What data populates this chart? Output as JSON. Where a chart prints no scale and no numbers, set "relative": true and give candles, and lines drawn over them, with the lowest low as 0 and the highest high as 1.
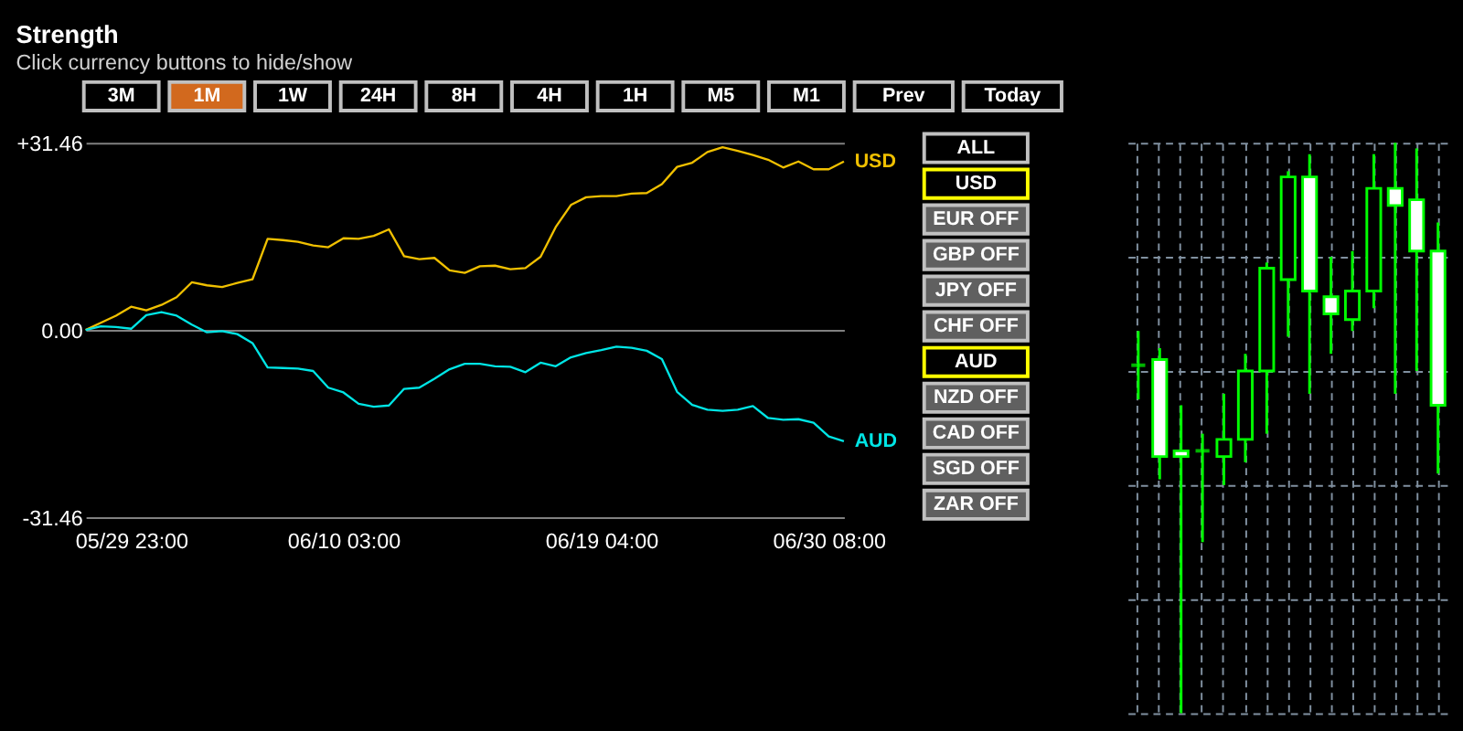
{
  "chart_data": [
    {
      "type": "line",
      "title": "Strength",
      "subtitle": "Click currency buttons to hide/show",
      "annotations": [
        "3M",
        "1M",
        "1W",
        "24H",
        "8H",
        "4H",
        "1H",
        "M5",
        "M1",
        "Prev",
        "Today",
        "ALL",
        "USD",
        "EUR OFF",
        "GBP OFF",
        "JPY OFF",
        "CHF OFF",
        "AUD",
        "NZD OFF",
        "CAD OFF",
        "SGD OFF",
        "ZAR OFF"
      ],
      "categories": [
        null,
        null,
        null,
        "05/29 23:00",
        null,
        null,
        null,
        null,
        null,
        null,
        null,
        null,
        null,
        null,
        null,
        null,
        null,
        "06/10 03:00",
        null,
        null,
        null,
        null,
        null,
        null,
        null,
        null,
        null,
        null,
        null,
        null,
        null,
        null,
        null,
        null,
        "06/19 04:00",
        null,
        null,
        null,
        null,
        null,
        null,
        null,
        null,
        null,
        null,
        null,
        null,
        null,
        null,
        "06/30 08:00",
        null
      ],
      "ylim": [
        -31.46,
        31.46
      ],
      "yticks": [
        {
          "value": -31.46,
          "label": "-31.46"
        },
        {
          "value": 0,
          "label": "0.00"
        },
        {
          "value": 31.46,
          "label": "+31.46"
        }
      ],
      "grid": "y",
      "legend": false,
      "line_style": "solid",
      "marker": "none",
      "series": [
        {
          "name": "USD",
          "color": "#f0c000",
          "values": [
            0,
            1.2,
            2.4,
            3.9,
            3.3,
            4.2,
            5.5,
            8.0,
            7.5,
            7.2,
            7.9,
            8.5,
            15.3,
            15.1,
            14.8,
            14.2,
            13.9,
            15.4,
            15.3,
            15.8,
            16.9,
            12.4,
            11.9,
            12.1,
            10.0,
            9.6,
            10.7,
            10.8,
            10.2,
            10.4,
            12.3,
            17.3,
            21.0,
            22.3,
            22.5,
            22.5,
            22.9,
            23.0,
            24.5,
            27.4,
            28.1,
            29.9,
            30.7,
            30.1,
            29.4,
            28.6,
            27.3,
            28.3,
            27.0,
            27.0,
            28.3
          ]
        },
        {
          "name": "AUD",
          "color": "#00e5e5",
          "values": [
            0,
            0.6,
            0.5,
            0.2,
            2.5,
            3.0,
            2.4,
            0.9,
            -0.4,
            -0.2,
            -0.7,
            -2.2,
            -6.3,
            -6.4,
            -6.5,
            -6.9,
            -9.7,
            -10.5,
            -12.4,
            -12.9,
            -12.7,
            -9.9,
            -9.7,
            -8.2,
            -6.6,
            -5.7,
            -5.7,
            -6.1,
            -6.2,
            -7.1,
            -5.5,
            -6.1,
            -4.6,
            -3.9,
            -3.4,
            -2.8,
            -3.0,
            -3.5,
            -4.9,
            -10.4,
            -12.6,
            -13.4,
            -13.6,
            -13.4,
            -12.8,
            -14.8,
            -15.1,
            -15.0,
            -15.6,
            -17.9,
            -18.7
          ]
        }
      ]
    },
    {
      "type": "candlestick",
      "relative": true,
      "grid": true,
      "categories": [
        null,
        null,
        null,
        null,
        null,
        null,
        null,
        null,
        null,
        null,
        null,
        null,
        null,
        null,
        null
      ],
      "ohlc": [
        [
          0.61,
          0.67,
          0.55,
          0.61
        ],
        [
          0.62,
          0.64,
          0.41,
          0.45
        ],
        [
          0.46,
          0.54,
          0,
          0.45
        ],
        [
          0.46,
          0.49,
          0.3,
          0.46
        ],
        [
          0.45,
          0.56,
          0.4,
          0.48
        ],
        [
          0.48,
          0.63,
          0.44,
          0.6
        ],
        [
          0.6,
          0.79,
          0.49,
          0.78
        ],
        [
          0.76,
          0.95,
          0.66,
          0.94
        ],
        [
          0.94,
          0.98,
          0.56,
          0.74
        ],
        [
          0.73,
          0.8,
          0.63,
          0.7
        ],
        [
          0.69,
          0.81,
          0.67,
          0.74
        ],
        [
          0.74,
          0.98,
          0.71,
          0.92
        ],
        [
          0.92,
          1,
          0.56,
          0.89
        ],
        [
          0.9,
          0.99,
          0.6,
          0.81
        ],
        [
          0.81,
          0.86,
          0.42,
          0.54
        ]
      ]
    }
  ]
}
